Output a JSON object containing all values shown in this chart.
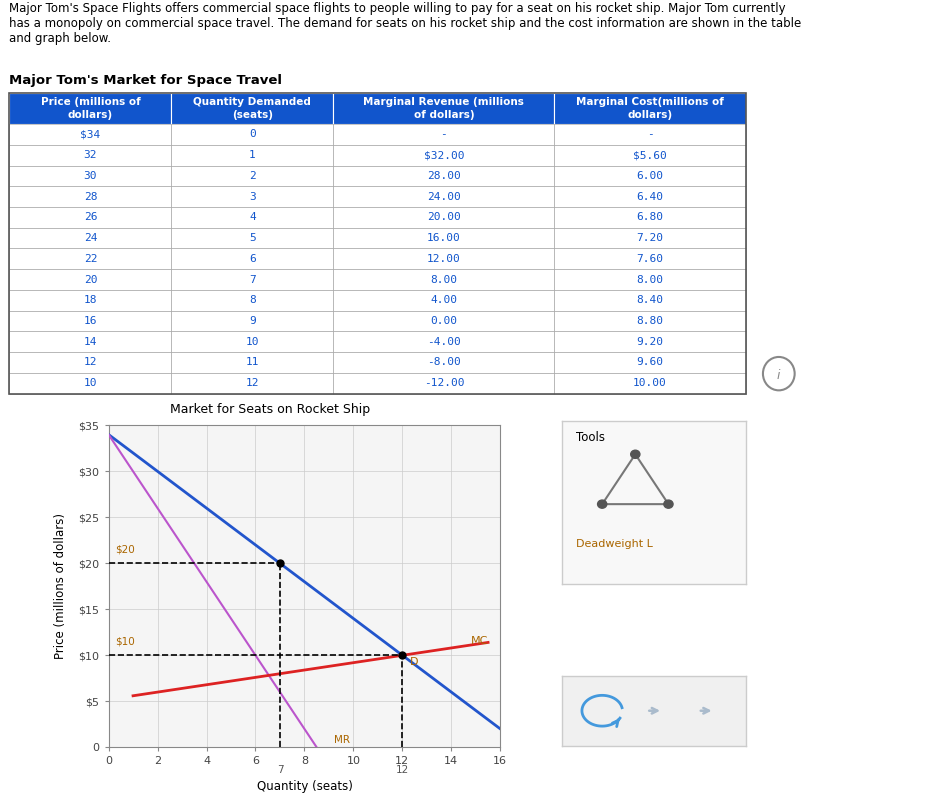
{
  "intro_text": "Major Tom's Space Flights offers commercial space flights to people willing to pay for a seat on his rocket ship. Major Tom currently\nhas a monopoly on commercial space travel. The demand for seats on his rocket ship and the cost information are shown in the table\nand graph below.",
  "table_title": "Major Tom's Market for Space Travel",
  "table_headers": [
    "Price (millions of\ndollars)",
    "Quantity Demanded\n(seats)",
    "Marginal Revenue (millions\nof dollars)",
    "Marginal Cost(millions of\ndollars)"
  ],
  "table_data": [
    [
      "$34",
      "0",
      "-",
      "-"
    ],
    [
      "32",
      "1",
      "$32.00",
      "$5.60"
    ],
    [
      "30",
      "2",
      "28.00",
      "6.00"
    ],
    [
      "28",
      "3",
      "24.00",
      "6.40"
    ],
    [
      "26",
      "4",
      "20.00",
      "6.80"
    ],
    [
      "24",
      "5",
      "16.00",
      "7.20"
    ],
    [
      "22",
      "6",
      "12.00",
      "7.60"
    ],
    [
      "20",
      "7",
      "8.00",
      "8.00"
    ],
    [
      "18",
      "8",
      "4.00",
      "8.40"
    ],
    [
      "16",
      "9",
      "0.00",
      "8.80"
    ],
    [
      "14",
      "10",
      "-4.00",
      "9.20"
    ],
    [
      "12",
      "11",
      "-8.00",
      "9.60"
    ],
    [
      "10",
      "12",
      "-12.00",
      "10.00"
    ]
  ],
  "graph_title": "Market for Seats on Rocket Ship",
  "xlabel": "Quantity (seats)",
  "ylabel": "Price (millions of dollars)",
  "xlim": [
    0,
    16
  ],
  "ylim": [
    0,
    35
  ],
  "xticks": [
    0,
    2,
    4,
    6,
    8,
    10,
    12,
    14,
    16
  ],
  "yticks": [
    0,
    5,
    10,
    15,
    20,
    25,
    30,
    35
  ],
  "ytick_labels": [
    "0",
    "$5",
    "$10",
    "$15",
    "$20",
    "$25",
    "$30",
    "$35"
  ],
  "demand_color": "#2255cc",
  "mr_color": "#bb55cc",
  "mc_color": "#dd2222",
  "monopoly_qty": 7,
  "monopoly_price": 20,
  "competitive_qty": 12,
  "competitive_price": 10,
  "header_bg": "#1155cc",
  "header_fg": "white",
  "row_fg": "#1155cc",
  "annotation_color": "#aa6600"
}
